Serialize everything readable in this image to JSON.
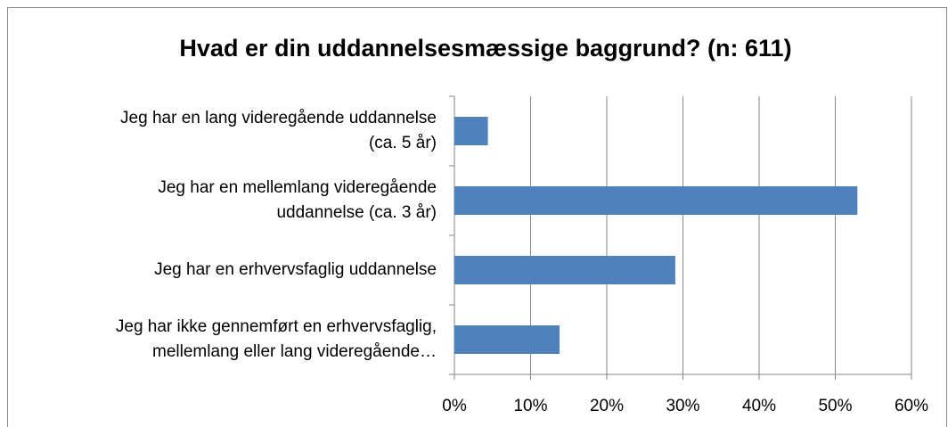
{
  "chart_data": {
    "type": "bar",
    "orientation": "horizontal",
    "title": "Hvad er din uddannelsesmæssige baggrund? (n: 611)",
    "categories": [
      [
        "Jeg har en lang videregående uddannelse",
        "(ca. 5 år)"
      ],
      [
        "Jeg har en mellemlang videregående",
        "uddannelse (ca. 3 år)"
      ],
      [
        "Jeg har en erhvervsfaglig uddannelse"
      ],
      [
        "Jeg har ikke gennemført en erhvervsfaglig,",
        "mellemlang eller lang videregående…"
      ]
    ],
    "values": [
      4.4,
      52.9,
      29.0,
      13.8
    ],
    "color": "#4f81bd",
    "xlim": [
      0,
      60
    ],
    "xticks": [
      {
        "value": 0,
        "label": "0%"
      },
      {
        "value": 10,
        "label": "10%"
      },
      {
        "value": 20,
        "label": "20%"
      },
      {
        "value": 30,
        "label": "30%"
      },
      {
        "value": 40,
        "label": "40%"
      },
      {
        "value": 50,
        "label": "50%"
      },
      {
        "value": 60,
        "label": "60%"
      }
    ],
    "grid": true
  }
}
